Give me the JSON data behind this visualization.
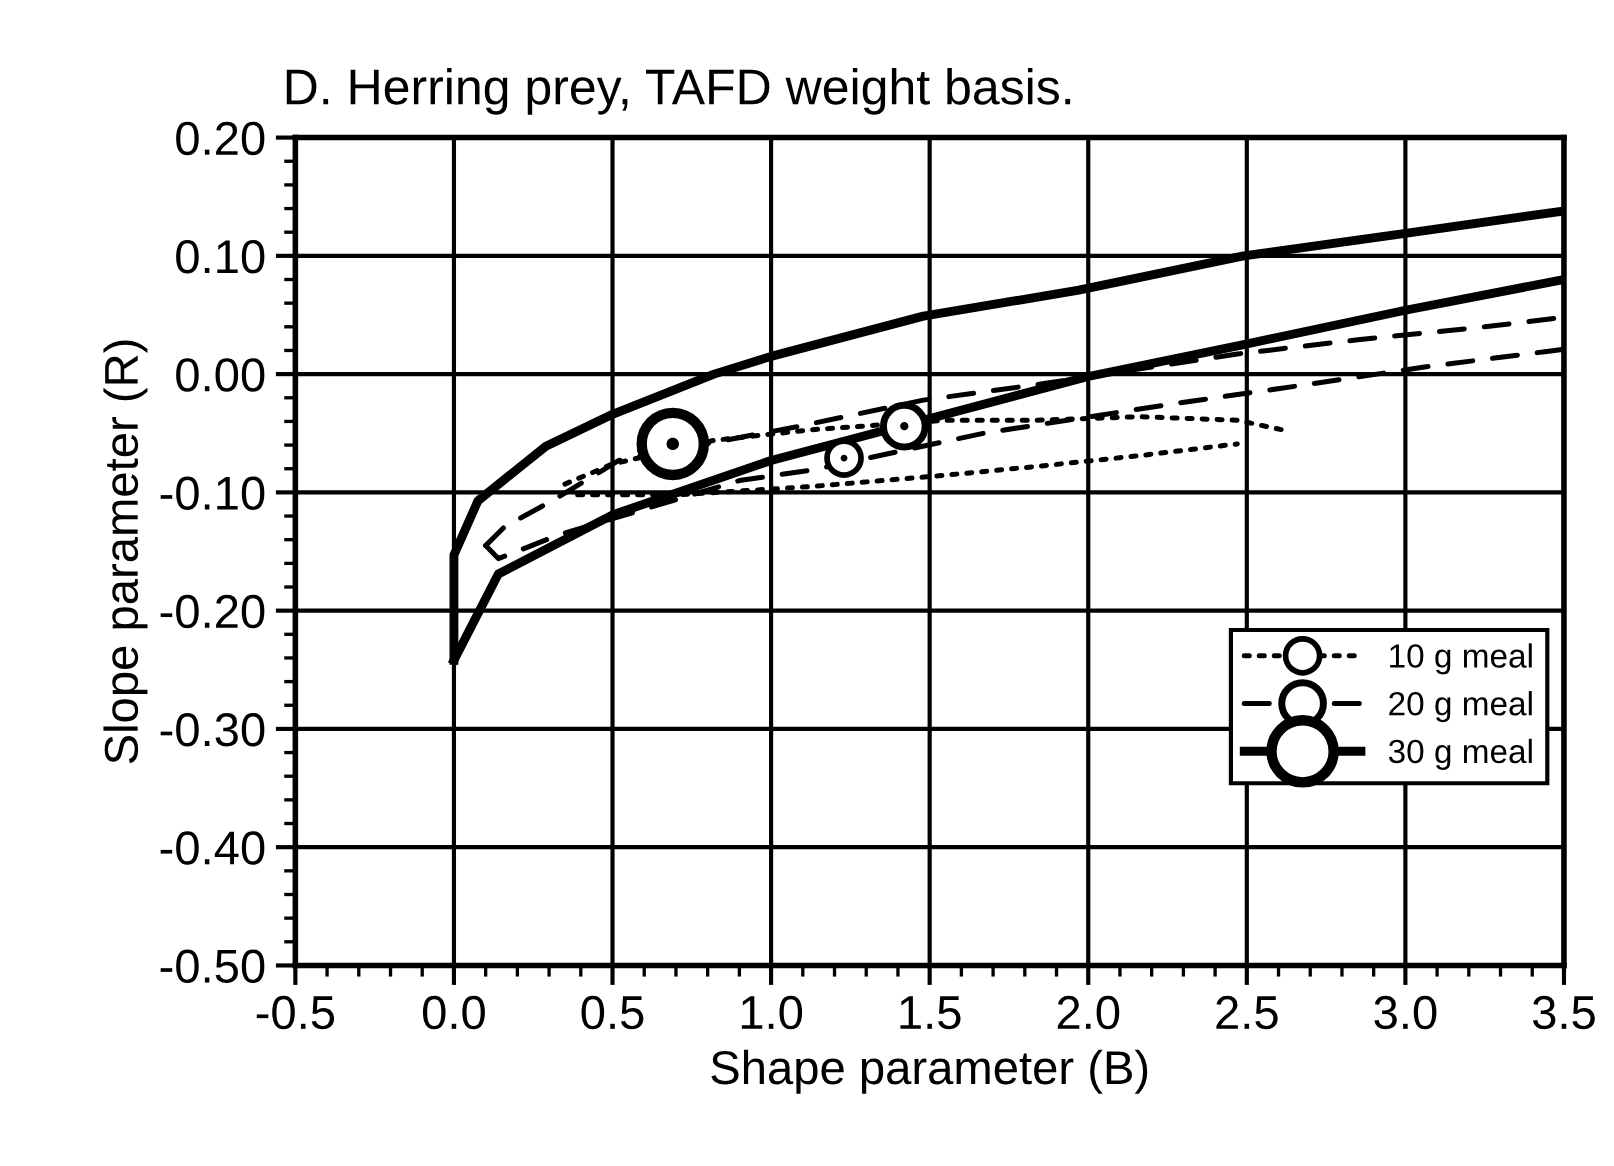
{
  "chart_data": {
    "type": "line",
    "title": "D. Herring prey, TAFD weight basis.",
    "xlabel": "Shape parameter (B)",
    "ylabel": "Slope parameter (R)",
    "xlim": [
      -0.5,
      3.5
    ],
    "ylim": [
      -0.5,
      0.2
    ],
    "xticks": [
      -0.5,
      {
        "value": 0,
        "label": "0.0"
      },
      0.5,
      {
        "value": 1,
        "label": "1.0"
      },
      1.5,
      {
        "value": 2,
        "label": "2.0"
      },
      2.5,
      {
        "value": 3,
        "label": "3.0"
      },
      3.5
    ],
    "yticks": [
      {
        "value": -0.5,
        "label": "-0.50"
      },
      {
        "value": -0.4,
        "label": "-0.40"
      },
      {
        "value": -0.3,
        "label": "-0.30"
      },
      {
        "value": -0.2,
        "label": "-0.20"
      },
      {
        "value": -0.1,
        "label": "-0.10"
      },
      {
        "value": 0,
        "label": "0.00"
      },
      {
        "value": 0.1,
        "label": "0.10"
      },
      {
        "value": 0.2,
        "label": "0.20"
      }
    ],
    "grid": true,
    "legend": "bottom right",
    "series": [
      {
        "name": "10 g meal",
        "line_style": "dotted",
        "color": "#000000",
        "x": [
          0.35,
          0.5,
          0.82,
          1.13,
          1.55,
          1.84,
          2.16,
          2.47,
          2.61
        ],
        "values": [
          -0.093,
          -0.076,
          -0.056,
          -0.047,
          -0.039,
          -0.039,
          -0.036,
          -0.039,
          -0.047
        ]
      },
      {
        "name": "20 g meal",
        "line_style": "dashed",
        "color": "#000000",
        "x": [
          0.1,
          0.16,
          0.31,
          0.52,
          1.09,
          1.48,
          1.86,
          2.47,
          2.85,
          3.25,
          3.5
        ],
        "values": [
          -0.145,
          -0.129,
          -0.107,
          -0.073,
          -0.044,
          -0.022,
          -0.008,
          0.017,
          0.029,
          0.04,
          0.048
        ]
      },
      {
        "name": "30 g meal",
        "line_style": "solid",
        "color": "#000000",
        "x": [
          0.0,
          0.0,
          0.076,
          0.29,
          0.5,
          0.82,
          1.0,
          1.48,
          1.97,
          2.49,
          3.0,
          3.5
        ],
        "values": [
          -0.242,
          -0.153,
          -0.107,
          -0.061,
          -0.034,
          0.0,
          0.015,
          0.049,
          0.071,
          0.1,
          0.119,
          0.138
        ]
      },
      {
        "line_style": "dotted",
        "color": "#000000",
        "x": [
          0.39,
          0.71,
          1.13,
          1.53,
          1.84,
          2.16,
          2.47
        ],
        "values": [
          -0.102,
          -0.102,
          -0.095,
          -0.086,
          -0.078,
          -0.069,
          -0.059
        ]
      },
      {
        "line_style": "dashed",
        "color": "#000000",
        "x": [
          0.1,
          0.14,
          0.33,
          0.9,
          1.13,
          1.67,
          2.27,
          2.66,
          3.06,
          3.44,
          3.5
        ],
        "values": [
          -0.145,
          -0.156,
          -0.136,
          -0.09,
          -0.081,
          -0.05,
          -0.025,
          -0.01,
          0.006,
          0.019,
          0.021
        ]
      },
      {
        "line_style": "solid",
        "color": "#000000",
        "x": [
          0.0,
          0.14,
          0.5,
          1.0,
          1.48,
          2.0,
          2.49,
          3.0,
          3.5
        ],
        "values": [
          -0.242,
          -0.169,
          -0.119,
          -0.073,
          -0.039,
          -0.002,
          0.025,
          0.054,
          0.08
        ]
      },
      {
        "type": "scatter",
        "marker": "circle",
        "color": "#000000",
        "x": [
          1.23,
          1.42,
          0.69
        ],
        "values": [
          -0.071,
          -0.044,
          -0.059
        ],
        "sizes": [
          0.3,
          0.45,
          1
        ]
      }
    ]
  }
}
